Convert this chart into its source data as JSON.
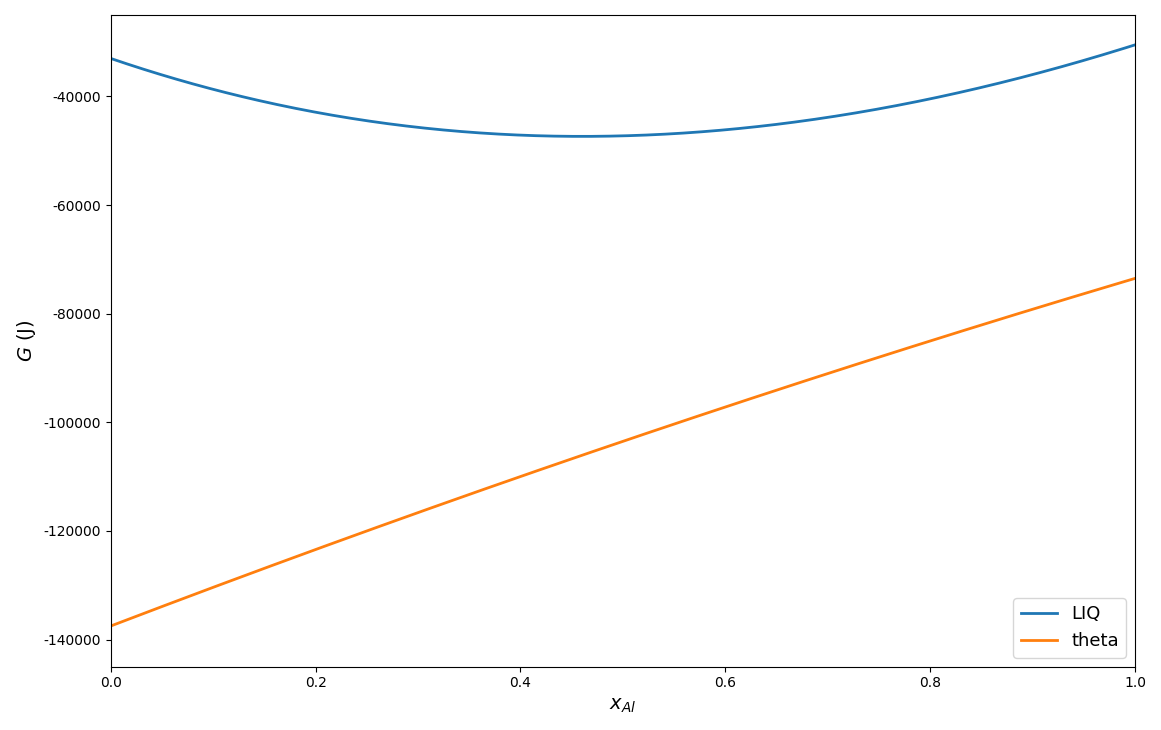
{
  "title": "",
  "xlabel": "$x_{Al}$",
  "ylabel": "$G$ (J)",
  "xlim": [
    0.0,
    1.0
  ],
  "ylim": [
    -145000,
    -25000
  ],
  "liq_color": "#1f77b4",
  "theta_color": "#ff7f0e",
  "legend_labels": [
    "LIQ",
    "theta"
  ],
  "G_Cu_liq": -33000.0,
  "G_Al_liq": -30500.0,
  "L0_liq": -62000.0,
  "L1_liq": -5000.0,
  "G_Cu_theta": -137500.0,
  "G_Al_theta": -73500.0,
  "L0_theta": 8000.0,
  "L1_theta": 0.0,
  "n_points": 500,
  "line_width": 2.0,
  "figsize": [
    11.61,
    7.3
  ],
  "dpi": 100,
  "yticks": [
    -140000,
    -120000,
    -100000,
    -80000,
    -60000,
    -40000
  ],
  "legend_loc": "lower right",
  "legend_fontsize": 13
}
